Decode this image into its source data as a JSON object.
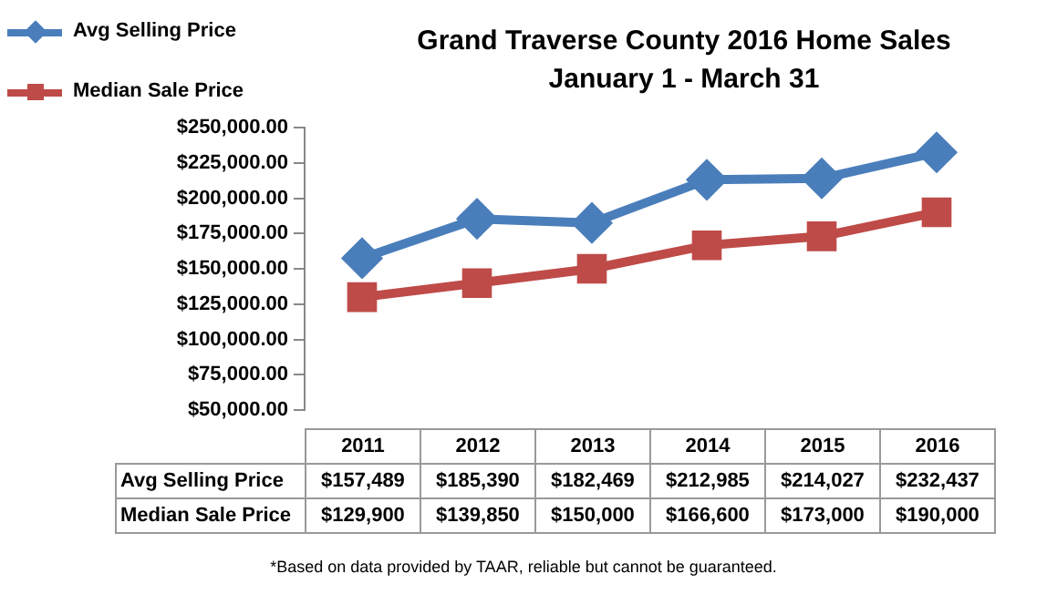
{
  "chart_data": {
    "type": "line",
    "title": "Grand Traverse County 2016 Home Sales",
    "subtitle": "January 1 - March 31",
    "categories": [
      "2011",
      "2012",
      "2013",
      "2014",
      "2015",
      "2016"
    ],
    "series": [
      {
        "name": "Avg Selling Price",
        "color": "#4a7ebb",
        "marker": "diamond",
        "values": [
          157489,
          185390,
          182469,
          212985,
          214027,
          232437
        ],
        "value_labels": [
          "$157,489",
          "$185,390",
          "$182,469",
          "$212,985",
          "$214,027",
          "$232,437"
        ]
      },
      {
        "name": "Median Sale Price",
        "color": "#be4b48",
        "marker": "square",
        "values": [
          129900,
          139850,
          150000,
          166600,
          173000,
          190000
        ],
        "value_labels": [
          "$129,900",
          "$139,850",
          "$150,000",
          "$166,600",
          "$173,000",
          "$190,000"
        ]
      }
    ],
    "ylim": [
      50000,
      250000
    ],
    "yticks": [
      {
        "value": 50000,
        "label": "$50,000.00"
      },
      {
        "value": 75000,
        "label": "$75,000.00"
      },
      {
        "value": 100000,
        "label": "$100,000.00"
      },
      {
        "value": 125000,
        "label": "$125,000.00"
      },
      {
        "value": 150000,
        "label": "$150,000.00"
      },
      {
        "value": 175000,
        "label": "$175,000.00"
      },
      {
        "value": 200000,
        "label": "$200,000.00"
      },
      {
        "value": 225000,
        "label": "$225,000.00"
      },
      {
        "value": 250000,
        "label": "$250,000.00"
      }
    ],
    "grid": false,
    "legend": "top left",
    "line_style": "solid",
    "annotations": [
      "*Based on data provided by TAAR, reliable but cannot be guaranteed."
    ]
  }
}
